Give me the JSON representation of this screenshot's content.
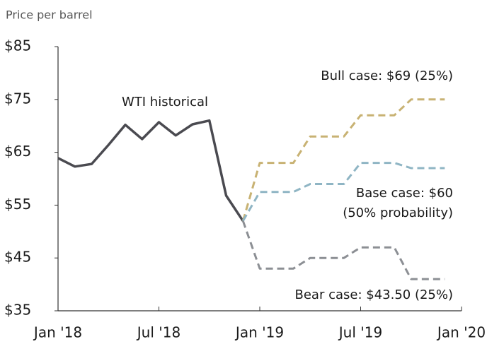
{
  "chart_data": {
    "type": "line",
    "subtitle": "Price per barrel",
    "xlim": [
      "2018-01",
      "2020-01"
    ],
    "xticks": [
      {
        "value": "2018-01",
        "label": "Jan '18"
      },
      {
        "value": "2018-07",
        "label": "Jul '18"
      },
      {
        "value": "2019-01",
        "label": "Jan '19"
      },
      {
        "value": "2019-07",
        "label": "Jul '19"
      },
      {
        "value": "2020-01",
        "label": "Jan '20"
      }
    ],
    "ylim": [
      35,
      85
    ],
    "yticks": [
      {
        "value": 35,
        "label": "$35"
      },
      {
        "value": 45,
        "label": "$45"
      },
      {
        "value": 55,
        "label": "$55"
      },
      {
        "value": 65,
        "label": "$65"
      },
      {
        "value": 75,
        "label": "$75"
      },
      {
        "value": 85,
        "label": "$85"
      }
    ],
    "series": [
      {
        "color": "#4a4a50",
        "dashed": false,
        "x": [
          "2018-01",
          "2018-02",
          "2018-03",
          "2018-04",
          "2018-05",
          "2018-06",
          "2018-07",
          "2018-08",
          "2018-09",
          "2018-10",
          "2018-11",
          "2018-12"
        ],
        "values": [
          63.9,
          62.3,
          62.8,
          66.4,
          70.2,
          67.5,
          70.7,
          68.2,
          70.3,
          71.0,
          56.8,
          52.0
        ]
      },
      {
        "color": "#c8b273",
        "dashed": true,
        "x": [
          "2018-12",
          "2019-01",
          "2019-02",
          "2019-03",
          "2019-04",
          "2019-05",
          "2019-06",
          "2019-07",
          "2019-08",
          "2019-09",
          "2019-10",
          "2019-11",
          "2019-12"
        ],
        "values": [
          52.0,
          63,
          63,
          63,
          68,
          68,
          68,
          72,
          72,
          72,
          75,
          75,
          75
        ]
      },
      {
        "color": "#8fb5c4",
        "dashed": true,
        "x": [
          "2018-12",
          "2019-01",
          "2019-02",
          "2019-03",
          "2019-04",
          "2019-05",
          "2019-06",
          "2019-07",
          "2019-08",
          "2019-09",
          "2019-10",
          "2019-11",
          "2019-12"
        ],
        "values": [
          52.0,
          57.5,
          57.5,
          57.5,
          59,
          59,
          59,
          63,
          63,
          63,
          62,
          62,
          62
        ]
      },
      {
        "color": "#8c8f94",
        "dashed": true,
        "x": [
          "2018-12",
          "2019-01",
          "2019-02",
          "2019-03",
          "2019-04",
          "2019-05",
          "2019-06",
          "2019-07",
          "2019-08",
          "2019-09",
          "2019-10",
          "2019-11",
          "2019-12"
        ],
        "values": [
          52.0,
          43,
          43,
          43,
          45,
          45,
          45,
          47,
          47,
          47,
          41,
          41,
          41
        ]
      }
    ],
    "annotations": [
      "WTI historical",
      "Bull case: $69 (25%)",
      "Base case: $60",
      "(50% probability)",
      "Bear case: $43.50 (25%)"
    ]
  }
}
